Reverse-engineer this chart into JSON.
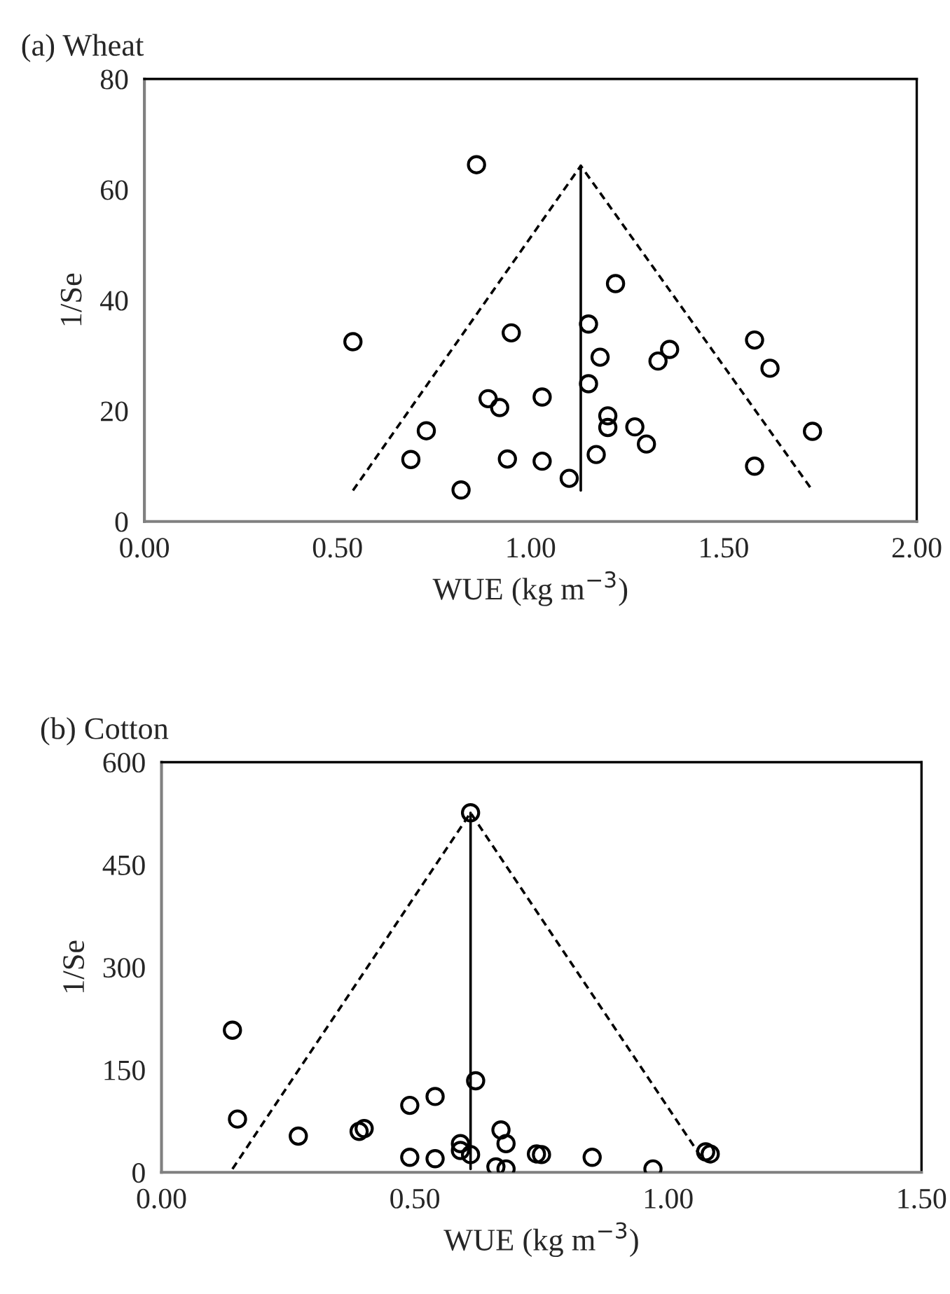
{
  "chart_data": [
    {
      "type": "scatter",
      "title": "(a) Wheat",
      "xlabel": "WUE (kg m$^{−3}$)",
      "ylabel": "1/Se",
      "xlim": [
        0,
        2
      ],
      "xticks": [
        {
          "value": 0,
          "label": "0.00"
        },
        {
          "value": 0.5,
          "label": "0.50"
        },
        {
          "value": 1,
          "label": "1.00"
        },
        {
          "value": 1.5,
          "label": "1.50"
        },
        {
          "value": 2,
          "label": "2.00"
        }
      ],
      "ylim": [
        0,
        80
      ],
      "yticks": [
        0,
        20,
        40,
        60,
        80
      ],
      "grid": false,
      "legend": false,
      "series": [
        {
          "color": "#000000",
          "marker": "circle",
          "x": [
            0.86,
            0.54,
            0.95,
            1.22,
            1.15,
            1.18,
            1.33,
            1.36,
            1.58,
            1.62,
            1.15,
            0.89,
            0.92,
            1.03,
            1.2,
            1.2,
            1.27,
            1.3,
            0.73,
            1.73,
            0.69,
            0.94,
            1.03,
            1.17,
            1.58,
            1.1,
            0.82
          ],
          "values": [
            64.5,
            32.5,
            34.1,
            43.0,
            35.7,
            29.7,
            29.0,
            31.1,
            32.8,
            27.7,
            24.9,
            22.2,
            20.6,
            22.5,
            19.1,
            17.0,
            17.1,
            14.0,
            16.4,
            16.3,
            11.2,
            11.3,
            10.9,
            12.1,
            10.0,
            7.8,
            5.7
          ]
        },
        {
          "type": "line",
          "color": "#000000",
          "marker": "none",
          "line_style": "dashed",
          "x": [
            0.54,
            1.13,
            1.73
          ],
          "values": [
            5.6,
            64.3,
            5.6
          ]
        },
        {
          "type": "line",
          "color": "#000000",
          "marker": "none",
          "line_style": "solid",
          "x": [
            1.13,
            1.13
          ],
          "values": [
            5.6,
            64.3
          ]
        }
      ]
    },
    {
      "type": "scatter",
      "title": "(b) Cotton",
      "xlabel": "WUE (kg m$^{−3}$)",
      "ylabel": "1/Se",
      "xlim": [
        0,
        1.5
      ],
      "xticks": [
        {
          "value": 0,
          "label": "0.00"
        },
        {
          "value": 0.5,
          "label": "0.50"
        },
        {
          "value": 1,
          "label": "1.00"
        },
        {
          "value": 1.5,
          "label": "1.50"
        }
      ],
      "ylim": [
        0,
        600
      ],
      "yticks": [
        0,
        150,
        300,
        450,
        600
      ],
      "grid": false,
      "legend": false,
      "series": [
        {
          "color": "#000000",
          "marker": "circle",
          "x": [
            0.61,
            0.14,
            0.15,
            0.27,
            0.39,
            0.4,
            0.49,
            0.54,
            0.62,
            0.49,
            0.54,
            0.59,
            0.59,
            0.61,
            0.67,
            0.68,
            0.66,
            0.68,
            0.74,
            0.75,
            0.85,
            0.97,
            1.074,
            1.083
          ],
          "values": [
            526,
            208,
            78,
            53,
            60,
            64,
            98,
            111,
            134,
            22,
            20,
            42,
            32,
            26,
            62,
            42,
            8,
            5,
            27,
            26,
            22,
            5,
            30,
            27
          ]
        },
        {
          "type": "line",
          "color": "#000000",
          "marker": "none",
          "line_style": "dashed",
          "x": [
            0.14,
            0.61,
            1.07
          ],
          "values": [
            5,
            526,
            17
          ]
        },
        {
          "type": "line",
          "color": "#000000",
          "marker": "none",
          "line_style": "solid",
          "x": [
            0.61,
            0.61
          ],
          "values": [
            5,
            526
          ]
        }
      ]
    }
  ]
}
